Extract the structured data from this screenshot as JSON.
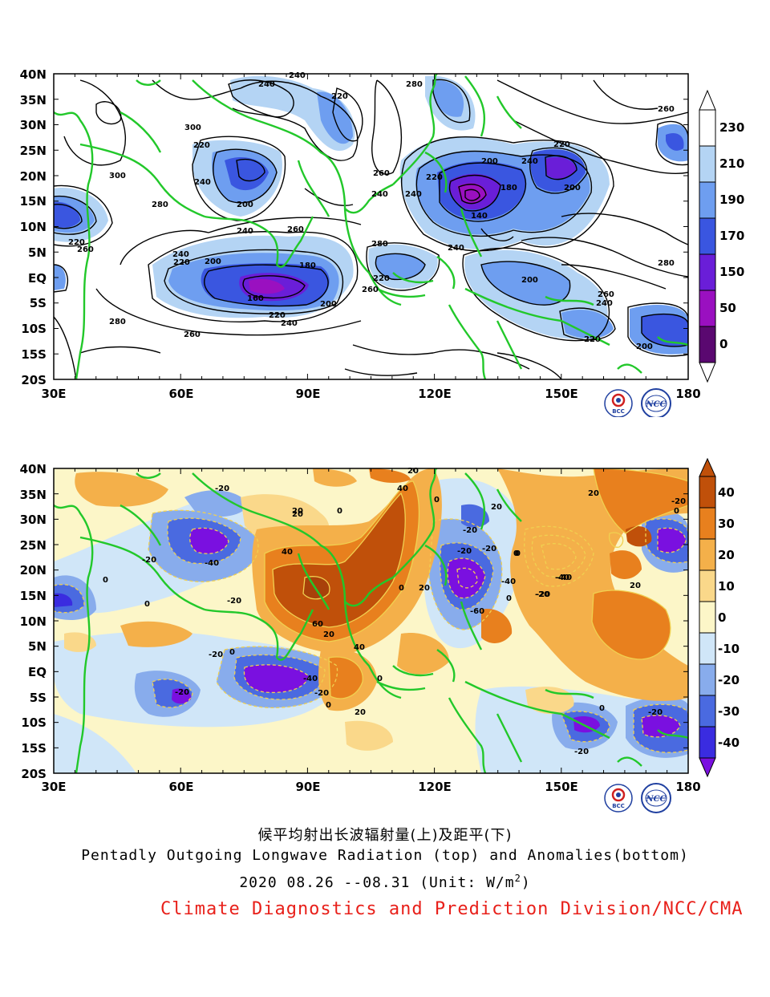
{
  "top_panel": {
    "lat_labels": [
      "40N",
      "35N",
      "30N",
      "25N",
      "20N",
      "15N",
      "10N",
      "5N",
      "EQ",
      "5S",
      "10S",
      "15S",
      "20S"
    ],
    "lon_labels": [
      "30E",
      "60E",
      "90E",
      "120E",
      "150E",
      "180"
    ],
    "colorbar_labels": [
      "230",
      "210",
      "190",
      "170",
      "150",
      "50",
      "0"
    ],
    "colorbar_colors": [
      "#ffffff",
      "#b4d4f4",
      "#6e9ef0",
      "#3a56e0",
      "#6a1ed8",
      "#9a10c0",
      "#5a0870"
    ],
    "contour_labels": [
      "240",
      "240",
      "280",
      "220",
      "300",
      "220",
      "300",
      "240",
      "200",
      "280",
      "260",
      "240",
      "220",
      "200",
      "180",
      "160",
      "220",
      "240",
      "200",
      "260",
      "280",
      "260",
      "240",
      "220",
      "200",
      "180",
      "140",
      "240",
      "220",
      "240",
      "260",
      "280",
      "260",
      "240",
      "220",
      "240",
      "200",
      "220",
      "200",
      "260",
      "240",
      "220",
      "200",
      "280",
      "260"
    ],
    "logos": [
      "BCC",
      "NCC"
    ]
  },
  "bottom_panel": {
    "lat_labels": [
      "40N",
      "35N",
      "30N",
      "25N",
      "20N",
      "15N",
      "10N",
      "5N",
      "EQ",
      "5S",
      "10S",
      "15S",
      "20S"
    ],
    "lon_labels": [
      "30E",
      "60E",
      "90E",
      "120E",
      "150E",
      "180"
    ],
    "colorbar_labels": [
      "40",
      "30",
      "20",
      "10",
      "0",
      "-10",
      "-20",
      "-30",
      "-40"
    ],
    "colorbar_colors": [
      "#c0500a",
      "#e8801e",
      "#f4b04a",
      "#fad88a",
      "#fcf6c8",
      "#d0e6f8",
      "#88acec",
      "#4a6ae0",
      "#3a2ce0",
      "#7a10e0"
    ],
    "contour_labels": [
      "20",
      "-20",
      "40",
      "20",
      "0",
      "20",
      "0",
      "20",
      "0",
      "-20",
      "-20",
      "-20",
      "-20",
      "-40",
      "-40",
      "0",
      "0",
      "-20",
      "0",
      "-20",
      "40",
      "0",
      "20",
      "-40",
      "0",
      "-20",
      "0",
      "-40",
      "-20",
      "20",
      "60",
      "20",
      "-60",
      "20",
      "40",
      "-20",
      "-40",
      "-20",
      "-20",
      "0",
      "0",
      "0",
      "20",
      "-20",
      "0",
      "-20"
    ],
    "logos": [
      "BCC",
      "NCC"
    ]
  },
  "captions": {
    "title_cn": "候平均射出长波辐射量(上)及距平(下)",
    "title_en": "Pentadly Outgoing Longwave Radiation (top) and Anomalies(bottom)",
    "date_range": "2020  08.26 --08.31     (Unit: W/m",
    "unit_sup": "2",
    "unit_close": ")",
    "organization": "Climate Diagnostics and Prediction Division/NCC/CMA"
  }
}
